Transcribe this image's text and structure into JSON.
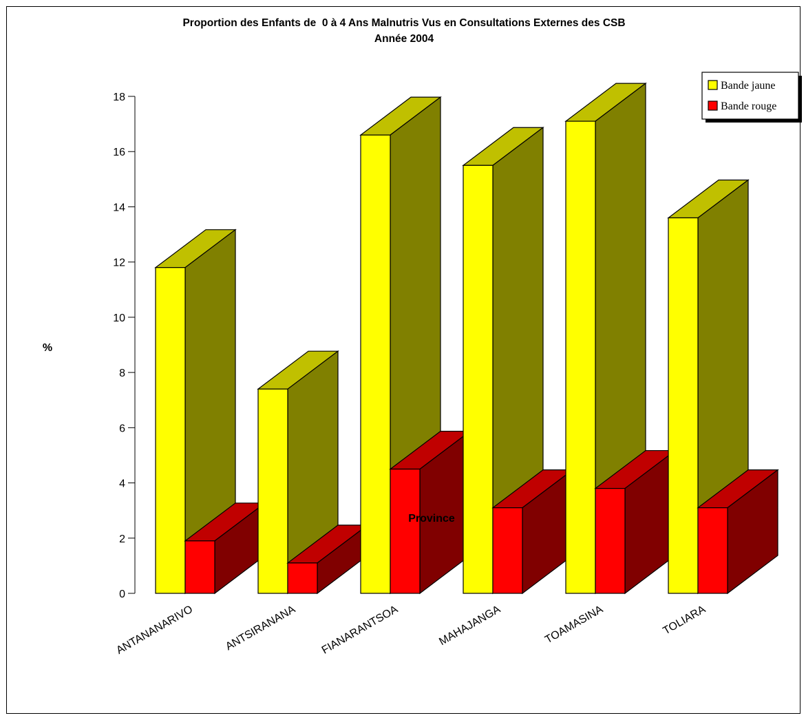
{
  "chart_data": {
    "type": "bar",
    "title": "Proportion des Enfants de  0 à 4 Ans Malnutris Vus en Consultations Externes des CSB",
    "subtitle": "Année 2004",
    "xlabel": "Province",
    "ylabel": "%",
    "categories": [
      "ANTANANARIVO",
      "ANTSIRANANA",
      "FIANARANTSOA",
      "MAHAJANGA",
      "TOAMASINA",
      "TOLIARA"
    ],
    "series": [
      {
        "name": "Bande jaune",
        "values": [
          11.8,
          7.4,
          16.6,
          15.5,
          17.1,
          13.6
        ],
        "color": "#ffff00",
        "side_color": "#808000",
        "top_color": "#c0c000"
      },
      {
        "name": "Bande rouge",
        "values": [
          1.9,
          1.1,
          4.5,
          3.1,
          3.8,
          3.1
        ],
        "color": "#ff0000",
        "side_color": "#800000",
        "top_color": "#c00000"
      }
    ],
    "ylim": [
      0,
      18
    ],
    "yticks": [
      0,
      2,
      4,
      6,
      8,
      10,
      12,
      14,
      16,
      18
    ],
    "grid": false,
    "legend": "top-right",
    "three_d": true
  }
}
